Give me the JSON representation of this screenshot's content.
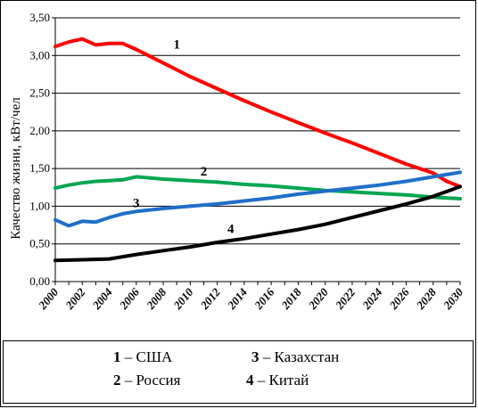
{
  "chart_data": {
    "type": "line",
    "ylabel": "Качество жизни, кВт/чел",
    "ylim": [
      0,
      3.5
    ],
    "y_ticks": [
      "0,00",
      "0,50",
      "1,00",
      "1,50",
      "2,00",
      "2,50",
      "3,00",
      "3,50"
    ],
    "x_ticks": [
      "2000",
      "2002",
      "2004",
      "2006",
      "2008",
      "2010",
      "2012",
      "2014",
      "2016",
      "2018",
      "2020",
      "2022",
      "2024",
      "2026",
      "2028",
      "2030"
    ],
    "xlim": [
      2000,
      2030
    ],
    "grid": "horizontal",
    "series": [
      {
        "label": "1",
        "color": "#ff0000",
        "x": [
          2000,
          2001,
          2002,
          2003,
          2004,
          2005,
          2006,
          2008,
          2010,
          2012,
          2014,
          2016,
          2018,
          2020,
          2022,
          2024,
          2026,
          2028,
          2029,
          2030
        ],
        "y": [
          3.12,
          3.18,
          3.22,
          3.14,
          3.16,
          3.16,
          3.08,
          2.9,
          2.72,
          2.56,
          2.4,
          2.25,
          2.11,
          1.97,
          1.84,
          1.7,
          1.56,
          1.44,
          1.33,
          1.26
        ]
      },
      {
        "label": "2",
        "color": "#00a651",
        "x": [
          2000,
          2001,
          2002,
          2003,
          2004,
          2005,
          2006,
          2008,
          2010,
          2012,
          2014,
          2016,
          2018,
          2020,
          2022,
          2024,
          2026,
          2028,
          2030
        ],
        "y": [
          1.24,
          1.28,
          1.31,
          1.33,
          1.34,
          1.35,
          1.39,
          1.36,
          1.34,
          1.32,
          1.29,
          1.27,
          1.24,
          1.21,
          1.19,
          1.17,
          1.15,
          1.12,
          1.1
        ]
      },
      {
        "label": "3",
        "color": "#1f6fc8",
        "x": [
          2000,
          2001,
          2002,
          2003,
          2004,
          2005,
          2006,
          2008,
          2010,
          2012,
          2014,
          2016,
          2018,
          2020,
          2022,
          2024,
          2026,
          2028,
          2030
        ],
        "y": [
          0.82,
          0.74,
          0.8,
          0.79,
          0.85,
          0.9,
          0.93,
          0.97,
          1.0,
          1.03,
          1.07,
          1.11,
          1.16,
          1.2,
          1.24,
          1.28,
          1.33,
          1.39,
          1.45
        ]
      },
      {
        "label": "4",
        "color": "#000000",
        "x": [
          2000,
          2002,
          2004,
          2006,
          2008,
          2010,
          2012,
          2014,
          2016,
          2018,
          2020,
          2022,
          2024,
          2026,
          2028,
          2030
        ],
        "y": [
          0.28,
          0.29,
          0.3,
          0.36,
          0.41,
          0.46,
          0.52,
          0.57,
          0.63,
          0.69,
          0.76,
          0.85,
          0.94,
          1.03,
          1.13,
          1.26
        ]
      }
    ],
    "legend": [
      {
        "num": "1",
        "text": " – США"
      },
      {
        "num": "2",
        "text": " – Россия"
      },
      {
        "num": "3",
        "text": " – Казахстан"
      },
      {
        "num": "4",
        "text": " – Китай"
      }
    ]
  }
}
